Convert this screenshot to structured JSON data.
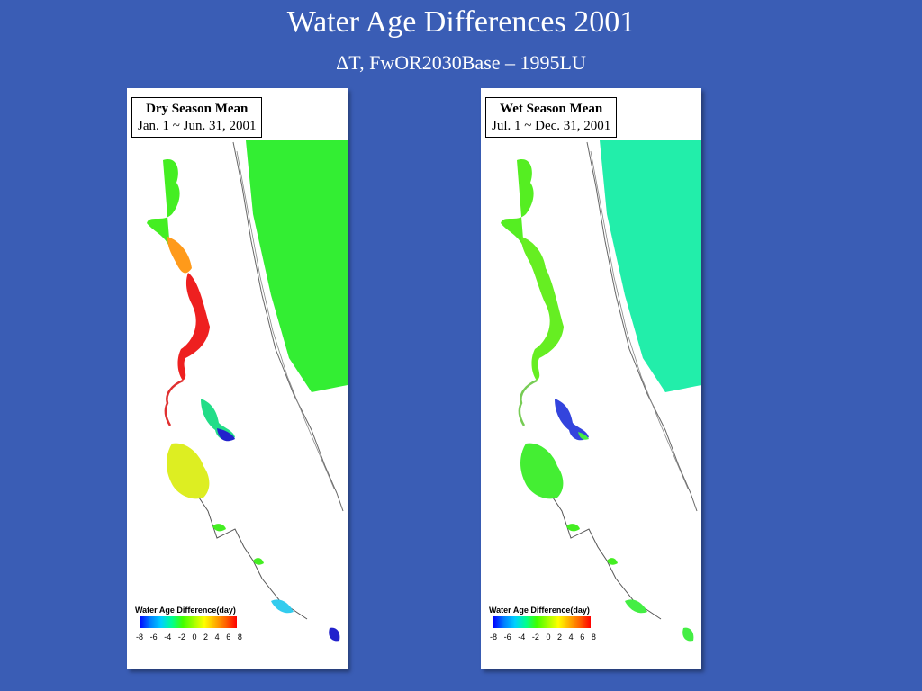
{
  "title": "Water Age Differences 2001",
  "subtitle": "ΔT, FwOR2030Base – 1995LU",
  "panels": [
    {
      "label_line1": "Dry Season Mean",
      "label_line2": "Jan. 1 ~ Jun. 31, 2001",
      "legend_title": "Water Age Difference(day)",
      "legend_ticks": [
        "-8",
        "-6",
        "-4",
        "-2",
        "0",
        "2",
        "4",
        "6",
        "8"
      ]
    },
    {
      "label_line1": "Wet Season Mean",
      "label_line2": "Jul. 1 ~ Dec. 31, 2001",
      "legend_title": "Water Age Difference(day)",
      "legend_ticks": [
        "-8",
        "-6",
        "-4",
        "-2",
        "0",
        "2",
        "4",
        "6",
        "8"
      ]
    }
  ],
  "colors": {
    "background": "#3a5db5",
    "ocean_green": "#33ee33",
    "ocean_cyan": "#22eeaa"
  }
}
